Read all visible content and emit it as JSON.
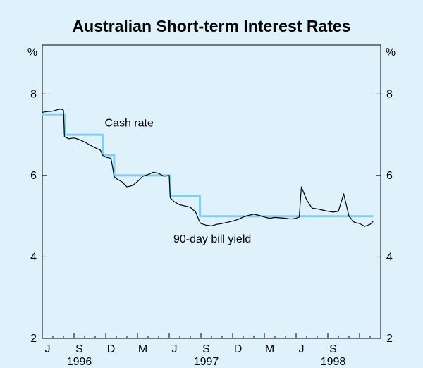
{
  "chart_data": {
    "type": "line",
    "title": "Australian Short-term Interest Rates",
    "y_unit_left": "%",
    "y_unit_right": "%",
    "ylim": [
      2,
      9.2
    ],
    "yticks": [
      2,
      4,
      6,
      8
    ],
    "xlim": [
      0,
      32
    ],
    "grid": false,
    "month_ticks": [
      {
        "label": "J",
        "x": 0.5
      },
      {
        "label": "S",
        "x": 3.5
      },
      {
        "label": "D",
        "x": 6.5
      },
      {
        "label": "M",
        "x": 9.5
      },
      {
        "label": "J",
        "x": 12.5
      },
      {
        "label": "S",
        "x": 15.5
      },
      {
        "label": "D",
        "x": 18.5
      },
      {
        "label": "M",
        "x": 21.5
      },
      {
        "label": "J",
        "x": 24.5
      },
      {
        "label": "S",
        "x": 27.5
      }
    ],
    "year_labels": [
      {
        "label": "1996",
        "x": 3.5
      },
      {
        "label": "1997",
        "x": 15.5
      },
      {
        "label": "1998",
        "x": 27.5
      }
    ],
    "annotations": [
      {
        "text": "Cash rate",
        "x": 5.9,
        "y": 7.2
      },
      {
        "text": "90-day bill yield",
        "x": 12.4,
        "y": 4.35
      }
    ],
    "series": [
      {
        "name": "Cash rate",
        "color": "#7fd0f3",
        "step": true,
        "x": [
          0,
          2.1,
          5.7,
          6.8,
          12.1,
          14.9,
          31.3
        ],
        "values": [
          7.5,
          7.0,
          6.5,
          6.0,
          5.5,
          5.0,
          5.0
        ]
      },
      {
        "name": "90-day bill yield",
        "color": "#000000",
        "step": false,
        "x": [
          0,
          0.5,
          1.0,
          1.5,
          1.8,
          2.0,
          2.1,
          2.5,
          3.0,
          3.5,
          4.0,
          4.5,
          5.0,
          5.5,
          5.7,
          6.0,
          6.5,
          6.8,
          7.0,
          7.5,
          8.0,
          8.5,
          9.0,
          9.5,
          10.0,
          10.5,
          11.0,
          11.5,
          12.0,
          12.1,
          12.5,
          13.0,
          13.5,
          14.0,
          14.5,
          14.9,
          15.0,
          15.5,
          16.0,
          16.5,
          17.0,
          17.5,
          18.0,
          18.5,
          19.0,
          19.5,
          20.0,
          20.5,
          21.0,
          21.5,
          22.0,
          22.5,
          23.0,
          23.5,
          24.0,
          24.3,
          24.5,
          25.0,
          25.5,
          26.0,
          26.5,
          27.0,
          27.5,
          28.0,
          28.5,
          29.0,
          29.5,
          30.0,
          30.5,
          31.0,
          31.3
        ],
        "values": [
          7.55,
          7.57,
          7.58,
          7.62,
          7.63,
          7.6,
          6.95,
          6.9,
          6.92,
          6.88,
          6.82,
          6.75,
          6.68,
          6.62,
          6.5,
          6.45,
          6.42,
          5.97,
          5.92,
          5.85,
          5.72,
          5.75,
          5.85,
          5.98,
          6.02,
          6.08,
          6.05,
          5.98,
          6.0,
          5.45,
          5.35,
          5.28,
          5.25,
          5.22,
          5.1,
          4.85,
          4.82,
          4.78,
          4.76,
          4.8,
          4.82,
          4.85,
          4.88,
          4.92,
          4.98,
          5.02,
          5.05,
          5.02,
          4.98,
          4.95,
          4.97,
          4.96,
          4.95,
          4.93,
          4.95,
          4.98,
          5.72,
          5.4,
          5.2,
          5.18,
          5.15,
          5.12,
          5.1,
          5.12,
          5.55,
          5.0,
          4.85,
          4.82,
          4.75,
          4.8,
          4.88
        ]
      }
    ]
  }
}
